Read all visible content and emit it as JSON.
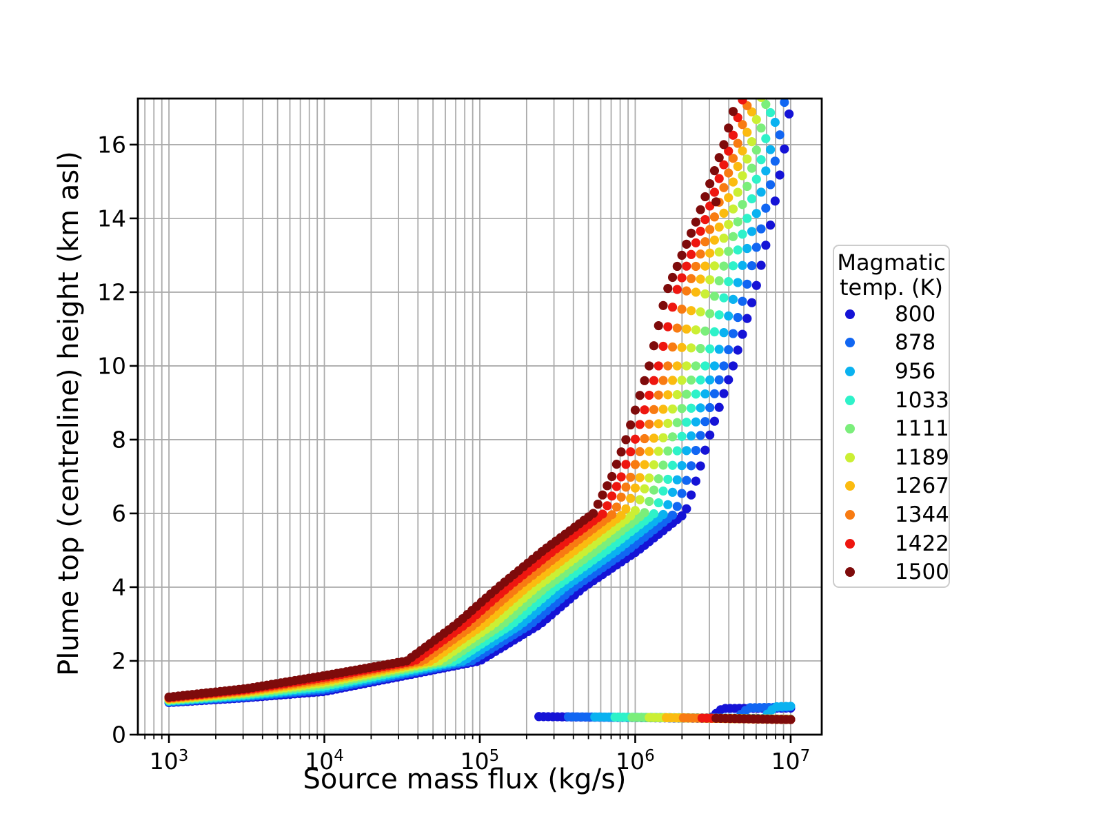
{
  "chart_data": {
    "type": "scatter",
    "xlabel": "Source mass flux (kg/s)",
    "ylabel": "Plume top (centreline) height (km asl)",
    "x_scale": "log",
    "x_log10_lim": [
      2.8,
      7.2
    ],
    "ylim": [
      0,
      17.25
    ],
    "x_major_tick_exponents": [
      3,
      4,
      5,
      6,
      7
    ],
    "y_ticks": [
      0,
      2,
      4,
      6,
      8,
      10,
      12,
      14,
      16
    ],
    "grid": {
      "color": "#ababab",
      "vertical": "major+minor",
      "horizontal": "major",
      "legend_position": "right"
    },
    "marker_radius_px": 6.6,
    "sample_step_log10": 0.03,
    "legend": {
      "title_line1": "Magmatic",
      "title_line2": "temp. (K)"
    },
    "series": [
      {
        "temp": 800,
        "color": "#1513D6",
        "rise_log10flux_height_km": [
          [
            3.0,
            0.87
          ],
          [
            3.5,
            1.0
          ],
          [
            4.0,
            1.17
          ],
          [
            5.0,
            2
          ],
          [
            5.39,
            3
          ],
          [
            5.67,
            4
          ],
          [
            6.02,
            5
          ],
          [
            6.32,
            6
          ],
          [
            6.4,
            7
          ],
          [
            6.47,
            8
          ],
          [
            6.63,
            10
          ],
          [
            6.77,
            12
          ],
          [
            6.88,
            14
          ],
          [
            6.965,
            16
          ],
          [
            7.01,
            17.5
          ]
        ],
        "collapse_log10flux_height_km": [
          [
            5.38,
            0.49
          ],
          [
            6.48,
            0.44
          ],
          [
            6.56,
            0.71
          ],
          [
            7.0,
            0.72
          ]
        ]
      },
      {
        "temp": 878,
        "color": "#1166F2",
        "rise_log10flux_height_km": [
          [
            3.0,
            0.887
          ],
          [
            3.5,
            1.028
          ],
          [
            4.0,
            1.218
          ],
          [
            4.948,
            2
          ],
          [
            5.33,
            3
          ],
          [
            5.609,
            4
          ],
          [
            5.952,
            5
          ],
          [
            6.254,
            6
          ],
          [
            6.339,
            7
          ],
          [
            6.411,
            8
          ],
          [
            6.57,
            10
          ],
          [
            6.707,
            12
          ],
          [
            6.827,
            14
          ],
          [
            6.921,
            16
          ],
          [
            6.972,
            17.5
          ]
        ],
        "collapse_log10flux_height_km": [
          [
            5.57,
            0.485
          ],
          [
            6.65,
            0.44
          ],
          [
            6.73,
            0.73
          ],
          [
            7.0,
            0.745
          ]
        ]
      },
      {
        "temp": 956,
        "color": "#0AB2F0",
        "rise_log10flux_height_km": [
          [
            3.0,
            0.903
          ],
          [
            3.5,
            1.056
          ],
          [
            4.0,
            1.266
          ],
          [
            4.896,
            2
          ],
          [
            5.27,
            3
          ],
          [
            5.548,
            4
          ],
          [
            5.884,
            5
          ],
          [
            6.189,
            6
          ],
          [
            6.278,
            7
          ],
          [
            6.352,
            8
          ],
          [
            6.51,
            10
          ],
          [
            6.643,
            12
          ],
          [
            6.773,
            14
          ],
          [
            6.877,
            16
          ],
          [
            6.934,
            17.5
          ]
        ],
        "collapse_log10flux_height_km": [
          [
            5.74,
            0.48
          ],
          [
            6.82,
            0.44
          ],
          [
            6.9,
            0.755
          ],
          [
            7.0,
            0.77
          ]
        ]
      },
      {
        "temp": 1033,
        "color": "#2EF2C9",
        "rise_log10flux_height_km": [
          [
            3.0,
            0.92
          ],
          [
            3.5,
            1.083
          ],
          [
            4.0,
            1.313
          ],
          [
            4.843,
            2
          ],
          [
            5.21,
            3
          ],
          [
            5.487,
            4
          ],
          [
            5.817,
            5
          ],
          [
            6.123,
            6
          ],
          [
            6.217,
            7
          ],
          [
            6.293,
            8
          ],
          [
            6.45,
            10
          ],
          [
            6.58,
            12
          ],
          [
            6.72,
            14
          ],
          [
            6.833,
            16
          ],
          [
            6.897,
            17.5
          ]
        ],
        "collapse_log10flux_height_km": [
          [
            5.87,
            0.475
          ],
          [
            7.0,
            0.42
          ]
        ]
      },
      {
        "temp": 1111,
        "color": "#7BEE7B",
        "rise_log10flux_height_km": [
          [
            3.0,
            0.937
          ],
          [
            3.5,
            1.111
          ],
          [
            4.0,
            1.361
          ],
          [
            4.791,
            2
          ],
          [
            5.15,
            3
          ],
          [
            5.426,
            4
          ],
          [
            5.749,
            5
          ],
          [
            6.058,
            6
          ],
          [
            6.156,
            7
          ],
          [
            6.234,
            8
          ],
          [
            6.39,
            10
          ],
          [
            6.517,
            12
          ],
          [
            6.667,
            14
          ],
          [
            6.789,
            16
          ],
          [
            6.859,
            17.5
          ]
        ],
        "collapse_log10flux_height_km": [
          [
            5.98,
            0.47
          ],
          [
            7.0,
            0.42
          ]
        ]
      },
      {
        "temp": 1189,
        "color": "#CBEF34",
        "rise_log10flux_height_km": [
          [
            3.0,
            0.953
          ],
          [
            3.5,
            1.139
          ],
          [
            4.0,
            1.409
          ],
          [
            4.739,
            2
          ],
          [
            5.09,
            3
          ],
          [
            5.364,
            4
          ],
          [
            5.681,
            5
          ],
          [
            5.992,
            6
          ],
          [
            6.094,
            7
          ],
          [
            6.176,
            8
          ],
          [
            6.33,
            10
          ],
          [
            6.453,
            12
          ],
          [
            6.613,
            14
          ],
          [
            6.746,
            16
          ],
          [
            6.821,
            17.5
          ]
        ],
        "collapse_log10flux_height_km": [
          [
            6.09,
            0.465
          ],
          [
            7.0,
            0.415
          ]
        ]
      },
      {
        "temp": 1267,
        "color": "#FBBB10",
        "rise_log10flux_height_km": [
          [
            3.0,
            0.97
          ],
          [
            3.5,
            1.167
          ],
          [
            4.0,
            1.457
          ],
          [
            4.687,
            2
          ],
          [
            5.03,
            3
          ],
          [
            5.303,
            4
          ],
          [
            5.613,
            5
          ],
          [
            5.927,
            6
          ],
          [
            6.033,
            7
          ],
          [
            6.117,
            8
          ],
          [
            6.27,
            10
          ],
          [
            6.39,
            12
          ],
          [
            6.56,
            14
          ],
          [
            6.702,
            16
          ],
          [
            6.783,
            17.5
          ]
        ],
        "collapse_log10flux_height_km": [
          [
            6.2,
            0.46
          ],
          [
            7.0,
            0.415
          ]
        ]
      },
      {
        "temp": 1344,
        "color": "#F87B12",
        "rise_log10flux_height_km": [
          [
            3.0,
            0.987
          ],
          [
            3.5,
            1.194
          ],
          [
            4.0,
            1.504
          ],
          [
            4.634,
            2
          ],
          [
            4.97,
            3
          ],
          [
            5.242,
            4
          ],
          [
            5.546,
            5
          ],
          [
            5.861,
            6
          ],
          [
            5.972,
            7
          ],
          [
            6.058,
            8
          ],
          [
            6.21,
            10
          ],
          [
            6.327,
            12
          ],
          [
            6.507,
            14
          ],
          [
            6.658,
            16
          ],
          [
            6.746,
            17.5
          ]
        ],
        "collapse_log10flux_height_km": [
          [
            6.31,
            0.455
          ],
          [
            7.0,
            0.41
          ]
        ]
      },
      {
        "temp": 1422,
        "color": "#EE1610",
        "rise_log10flux_height_km": [
          [
            3.0,
            1.003
          ],
          [
            3.5,
            1.222
          ],
          [
            4.0,
            1.552
          ],
          [
            4.582,
            2
          ],
          [
            4.91,
            3
          ],
          [
            5.181,
            4
          ],
          [
            5.478,
            5
          ],
          [
            5.796,
            6
          ],
          [
            5.911,
            7
          ],
          [
            5.999,
            8
          ],
          [
            6.15,
            10
          ],
          [
            6.263,
            12
          ],
          [
            6.453,
            14
          ],
          [
            6.614,
            16
          ],
          [
            6.708,
            17.5
          ]
        ],
        "collapse_log10flux_height_km": [
          [
            6.43,
            0.45
          ],
          [
            7.0,
            0.41
          ]
        ]
      },
      {
        "temp": 1500,
        "color": "#7E0B0B",
        "rise_log10flux_height_km": [
          [
            3.0,
            1.02
          ],
          [
            3.5,
            1.25
          ],
          [
            4.0,
            1.6
          ],
          [
            4.53,
            2
          ],
          [
            4.85,
            3
          ],
          [
            5.12,
            4
          ],
          [
            5.41,
            5
          ],
          [
            5.73,
            6
          ],
          [
            5.85,
            7
          ],
          [
            5.94,
            8
          ],
          [
            6.09,
            10
          ],
          [
            6.2,
            12
          ],
          [
            6.4,
            14
          ],
          [
            6.57,
            16
          ],
          [
            6.67,
            17.5
          ]
        ],
        "collapse_log10flux_height_km": [
          [
            6.52,
            0.445
          ],
          [
            7.0,
            0.41
          ]
        ]
      }
    ],
    "outlier_point": {
      "temp": 1500,
      "color": "#7E0B0B",
      "log10_flux": 6.52,
      "height_km": 14.45
    }
  }
}
